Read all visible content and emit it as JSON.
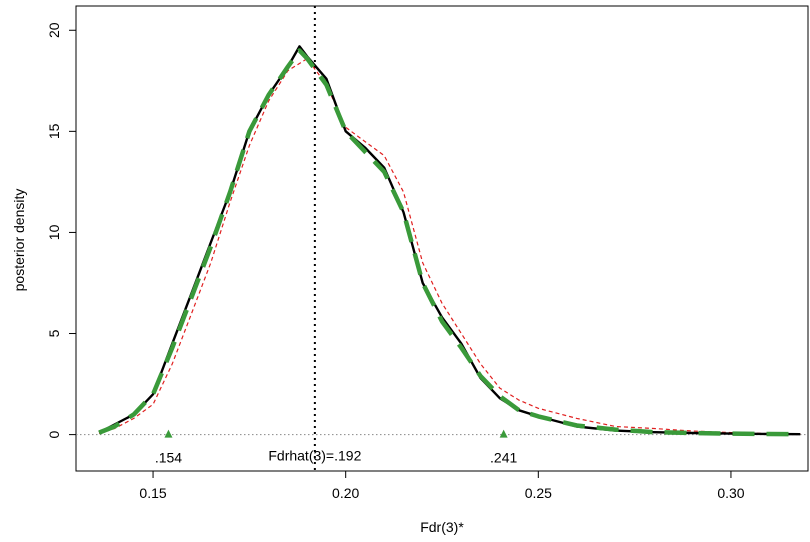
{
  "chart_data": {
    "type": "line",
    "title": "",
    "xlabel": "Fdr(3)*",
    "ylabel": "posterior density",
    "xlim": [
      0.13,
      0.32
    ],
    "ylim": [
      -1.8,
      21.2
    ],
    "x_ticks": [
      0.15,
      0.2,
      0.25,
      0.3
    ],
    "x_tick_labels": [
      "0.15",
      "0.20",
      "0.25",
      "0.30"
    ],
    "y_ticks": [
      0,
      5,
      10,
      15,
      20
    ],
    "y_tick_labels": [
      "0",
      "5",
      "10",
      "15",
      "20"
    ],
    "grid": false,
    "reference_line": {
      "orientation": "vertical",
      "x": 0.192,
      "label": "Fdrhat(3)=.192"
    },
    "baseline": {
      "orientation": "horizontal",
      "y": 0
    },
    "markers": [
      {
        "x": 0.154,
        "y": 0,
        "label": ".154",
        "color": "#3a9a3a"
      },
      {
        "x": 0.241,
        "y": 0,
        "label": ".241",
        "color": "#3a9a3a"
      }
    ],
    "series": [
      {
        "style": "solid",
        "color": "#000000",
        "x": [
          0.136,
          0.14,
          0.145,
          0.15,
          0.155,
          0.16,
          0.165,
          0.17,
          0.175,
          0.18,
          0.185,
          0.188,
          0.19,
          0.195,
          0.2,
          0.205,
          0.21,
          0.215,
          0.22,
          0.225,
          0.23,
          0.235,
          0.24,
          0.245,
          0.25,
          0.26,
          0.27,
          0.28,
          0.29,
          0.3,
          0.31,
          0.318
        ],
        "y": [
          0.1,
          0.5,
          1.0,
          2.0,
          4.5,
          7.0,
          9.5,
          12.0,
          15.0,
          16.8,
          18.2,
          19.2,
          18.7,
          17.6,
          15.0,
          14.2,
          13.2,
          11.0,
          7.5,
          5.8,
          4.5,
          2.8,
          1.8,
          1.2,
          0.9,
          0.4,
          0.2,
          0.12,
          0.08,
          0.05,
          0.03,
          0.02
        ]
      },
      {
        "style": "dashed",
        "color": "#e02020",
        "x": [
          0.136,
          0.14,
          0.145,
          0.15,
          0.155,
          0.16,
          0.165,
          0.17,
          0.175,
          0.18,
          0.185,
          0.19,
          0.195,
          0.2,
          0.205,
          0.21,
          0.215,
          0.22,
          0.225,
          0.23,
          0.235,
          0.24,
          0.245,
          0.25,
          0.26,
          0.27,
          0.28,
          0.29,
          0.3,
          0.31,
          0.318
        ],
        "y": [
          0.05,
          0.3,
          0.8,
          1.5,
          3.5,
          6.0,
          8.5,
          11.5,
          14.3,
          16.5,
          18.0,
          18.6,
          17.3,
          15.2,
          14.5,
          13.8,
          12.0,
          8.5,
          6.5,
          5.0,
          3.5,
          2.3,
          1.7,
          1.3,
          0.8,
          0.4,
          0.3,
          0.18,
          0.1,
          0.05,
          0.03
        ]
      },
      {
        "style": "long-dash",
        "color": "#3a9a3a",
        "x": [
          0.136,
          0.14,
          0.145,
          0.15,
          0.155,
          0.16,
          0.165,
          0.17,
          0.175,
          0.18,
          0.185,
          0.188,
          0.19,
          0.195,
          0.2,
          0.205,
          0.21,
          0.215,
          0.22,
          0.225,
          0.23,
          0.235,
          0.24,
          0.245,
          0.25,
          0.26,
          0.27,
          0.28,
          0.29,
          0.3,
          0.31,
          0.318
        ],
        "y": [
          0.1,
          0.4,
          1.0,
          2.0,
          4.3,
          6.8,
          9.3,
          12.0,
          15.0,
          16.8,
          18.2,
          19.0,
          18.6,
          17.3,
          15.0,
          14.0,
          13.0,
          11.0,
          7.5,
          5.6,
          4.3,
          2.9,
          1.9,
          1.2,
          0.9,
          0.45,
          0.25,
          0.12,
          0.08,
          0.05,
          0.03,
          0.02
        ]
      }
    ]
  }
}
